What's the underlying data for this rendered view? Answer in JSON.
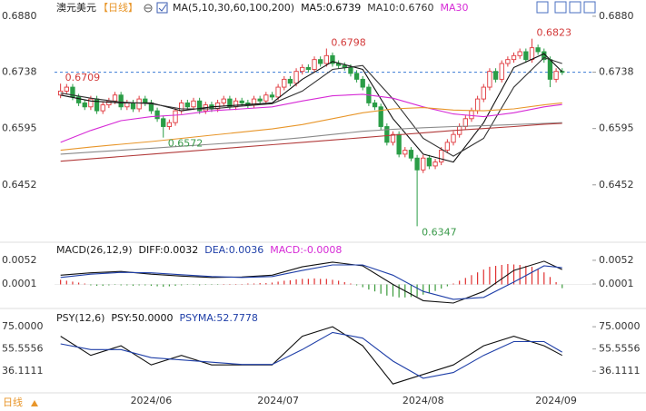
{
  "header": {
    "symbol": "澳元美元",
    "period": "【日线】"
  },
  "footer": {
    "period": "日线"
  },
  "chart_data": [
    {
      "type": "candlestick",
      "title": "MA(5,10,30,60,100,200)",
      "xlim": [
        -1,
        88
      ],
      "xticks": [
        {
          "value": 15,
          "label": "2024/06"
        },
        {
          "value": 36,
          "label": "2024/07"
        },
        {
          "value": 60,
          "label": "2024/08"
        },
        {
          "value": 82,
          "label": "2024/09"
        }
      ],
      "ylim": [
        0.6311,
        0.6912
      ],
      "yticks": [
        {
          "value": 0.688,
          "label": "0.6880"
        },
        0.6738,
        0.6595,
        0.6452
      ],
      "price_line": 0.6738,
      "price_line_color": "#3a7bd5",
      "up_color": "#e0393e",
      "down_color": "#2a9d46",
      "open": [
        0.668,
        0.669,
        0.67,
        0.6675,
        0.666,
        0.665,
        0.667,
        0.664,
        0.6655,
        0.6665,
        0.668,
        0.665,
        0.666,
        0.6645,
        0.667,
        0.666,
        0.664,
        0.662,
        0.66,
        0.661,
        0.664,
        0.666,
        0.665,
        0.6665,
        0.664,
        0.6655,
        0.6645,
        0.666,
        0.667,
        0.665,
        0.6665,
        0.666,
        0.6655,
        0.667,
        0.6665,
        0.668,
        0.6675,
        0.67,
        0.672,
        0.671,
        0.674,
        0.675,
        0.6745,
        0.677,
        0.676,
        0.678,
        0.676,
        0.6755,
        0.675,
        0.6735,
        0.672,
        0.67,
        0.666,
        0.665,
        0.66,
        0.656,
        0.658,
        0.653,
        0.654,
        0.652,
        0.649,
        0.652,
        0.65,
        0.651,
        0.654,
        0.656,
        0.658,
        0.66,
        0.662,
        0.664,
        0.667,
        0.67,
        0.674,
        0.672,
        0.676,
        0.677,
        0.678,
        0.679,
        0.677,
        0.68,
        0.679,
        0.677,
        0.672,
        0.674
      ],
      "high": [
        0.6709,
        0.6708,
        0.6708,
        0.6683,
        0.6668,
        0.6678,
        0.6678,
        0.6663,
        0.6673,
        0.6688,
        0.6688,
        0.6668,
        0.6668,
        0.6678,
        0.6678,
        0.6668,
        0.6648,
        0.6628,
        0.6618,
        0.6648,
        0.6668,
        0.6668,
        0.6673,
        0.6673,
        0.6663,
        0.6663,
        0.6668,
        0.6678,
        0.6678,
        0.6673,
        0.6673,
        0.6668,
        0.6678,
        0.6678,
        0.6688,
        0.6688,
        0.6708,
        0.6728,
        0.6728,
        0.6748,
        0.6758,
        0.6758,
        0.6778,
        0.6778,
        0.6798,
        0.6788,
        0.6768,
        0.6763,
        0.6758,
        0.6743,
        0.6728,
        0.6708,
        0.6668,
        0.6658,
        0.6608,
        0.6588,
        0.6588,
        0.6548,
        0.6548,
        0.6528,
        0.6528,
        0.6528,
        0.6518,
        0.6548,
        0.6568,
        0.6588,
        0.6608,
        0.6628,
        0.6648,
        0.6678,
        0.6708,
        0.6748,
        0.6748,
        0.6768,
        0.6778,
        0.6788,
        0.6798,
        0.6798,
        0.6823,
        0.6808,
        0.6798,
        0.6778,
        0.6748,
        0.6748
      ],
      "low": [
        0.6672,
        0.6682,
        0.6667,
        0.6652,
        0.6642,
        0.6642,
        0.6632,
        0.6632,
        0.6647,
        0.6657,
        0.6642,
        0.6642,
        0.6637,
        0.6637,
        0.6652,
        0.6632,
        0.6612,
        0.6572,
        0.6592,
        0.6602,
        0.6632,
        0.6642,
        0.6642,
        0.6632,
        0.6632,
        0.6637,
        0.6637,
        0.6652,
        0.6642,
        0.6642,
        0.6652,
        0.6647,
        0.6647,
        0.6657,
        0.6657,
        0.6667,
        0.6667,
        0.6692,
        0.6702,
        0.6702,
        0.6732,
        0.6737,
        0.6737,
        0.6752,
        0.6752,
        0.6752,
        0.6747,
        0.6742,
        0.6727,
        0.6712,
        0.6692,
        0.6652,
        0.6642,
        0.6592,
        0.6552,
        0.6552,
        0.6522,
        0.6522,
        0.6512,
        0.6347,
        0.6482,
        0.6492,
        0.6492,
        0.6502,
        0.6532,
        0.6552,
        0.6572,
        0.6592,
        0.6612,
        0.6632,
        0.6662,
        0.6692,
        0.6712,
        0.6712,
        0.6752,
        0.6762,
        0.6772,
        0.6762,
        0.6762,
        0.6782,
        0.6762,
        0.67,
        0.6712,
        0.6731
      ],
      "close": [
        0.669,
        0.67,
        0.6675,
        0.666,
        0.665,
        0.667,
        0.664,
        0.6655,
        0.6665,
        0.668,
        0.665,
        0.666,
        0.6645,
        0.667,
        0.666,
        0.664,
        0.662,
        0.66,
        0.661,
        0.664,
        0.666,
        0.665,
        0.6665,
        0.664,
        0.6655,
        0.6645,
        0.666,
        0.667,
        0.665,
        0.6665,
        0.666,
        0.6655,
        0.667,
        0.6665,
        0.668,
        0.6675,
        0.67,
        0.672,
        0.671,
        0.674,
        0.675,
        0.6745,
        0.677,
        0.676,
        0.678,
        0.676,
        0.6755,
        0.675,
        0.6735,
        0.672,
        0.67,
        0.666,
        0.665,
        0.66,
        0.656,
        0.658,
        0.653,
        0.654,
        0.652,
        0.649,
        0.652,
        0.65,
        0.651,
        0.654,
        0.656,
        0.658,
        0.66,
        0.662,
        0.664,
        0.667,
        0.67,
        0.674,
        0.672,
        0.676,
        0.677,
        0.678,
        0.679,
        0.677,
        0.68,
        0.679,
        0.677,
        0.672,
        0.674,
        0.6739
      ],
      "annotations": [
        {
          "x": 0,
          "value": 0.6709,
          "color": "#d33a3a"
        },
        {
          "x": 44,
          "value": 0.6798,
          "color": "#d33a3a"
        },
        {
          "x": 17,
          "value": 0.6572,
          "color": "#3a9a4a"
        },
        {
          "x": 59,
          "value": 0.6347,
          "color": "#3a9a4a"
        },
        {
          "x": 78,
          "value": 0.6823,
          "color": "#d33a3a"
        }
      ],
      "series": [
        {
          "name": "MA5:0.6739",
          "color": "#111111",
          "x": [
            0,
            5,
            10,
            15,
            20,
            25,
            30,
            35,
            40,
            45,
            50,
            55,
            60,
            65,
            70,
            75,
            80,
            83
          ],
          "values": [
            0.668,
            0.6665,
            0.666,
            0.666,
            0.664,
            0.665,
            0.6655,
            0.666,
            0.672,
            0.6765,
            0.6745,
            0.662,
            0.653,
            0.651,
            0.661,
            0.675,
            0.6785,
            0.6739
          ]
        },
        {
          "name": "MA10:0.6760",
          "color": "#333333",
          "x": [
            0,
            5,
            10,
            15,
            20,
            25,
            30,
            35,
            40,
            45,
            50,
            55,
            60,
            65,
            70,
            75,
            80,
            83
          ],
          "values": [
            0.6685,
            0.6672,
            0.6662,
            0.6658,
            0.6645,
            0.6645,
            0.6652,
            0.6658,
            0.669,
            0.6745,
            0.6755,
            0.667,
            0.657,
            0.6525,
            0.657,
            0.67,
            0.6775,
            0.676
          ]
        },
        {
          "name": "MA30",
          "color": "#d62ad6",
          "x": [
            0,
            5,
            10,
            15,
            20,
            25,
            30,
            35,
            40,
            45,
            50,
            55,
            60,
            65,
            70,
            75,
            80,
            83
          ],
          "values": [
            0.656,
            0.659,
            0.6615,
            0.6625,
            0.663,
            0.664,
            0.6645,
            0.665,
            0.6665,
            0.6678,
            0.6682,
            0.6672,
            0.665,
            0.6632,
            0.6625,
            0.6635,
            0.665,
            0.6656
          ]
        },
        {
          "color": "#e8962a",
          "x": [
            0,
            5,
            10,
            15,
            20,
            25,
            30,
            35,
            40,
            45,
            50,
            55,
            60,
            65,
            70,
            75,
            80,
            83
          ],
          "values": [
            0.654,
            0.6548,
            0.6555,
            0.6562,
            0.657,
            0.6578,
            0.6586,
            0.6594,
            0.6605,
            0.662,
            0.6635,
            0.6645,
            0.6648,
            0.6642,
            0.664,
            0.6645,
            0.6655,
            0.666
          ]
        },
        {
          "color": "#8a8a8a",
          "x": [
            0,
            5,
            10,
            15,
            20,
            25,
            30,
            35,
            40,
            45,
            50,
            55,
            60,
            65,
            70,
            75,
            80,
            83
          ],
          "values": [
            0.653,
            0.6535,
            0.654,
            0.6545,
            0.655,
            0.6555,
            0.656,
            0.6565,
            0.6572,
            0.658,
            0.6588,
            0.6593,
            0.6597,
            0.66,
            0.6602,
            0.6605,
            0.6608,
            0.661
          ]
        },
        {
          "color": "#b23b3b",
          "x": [
            0,
            5,
            10,
            15,
            20,
            25,
            30,
            35,
            40,
            45,
            50,
            55,
            60,
            65,
            70,
            75,
            80,
            83
          ],
          "values": [
            0.6512,
            0.6518,
            0.6524,
            0.653,
            0.6536,
            0.6542,
            0.6548,
            0.6554,
            0.656,
            0.6566,
            0.6572,
            0.6578,
            0.6584,
            0.659,
            0.6595,
            0.66,
            0.6606,
            0.6608
          ]
        }
      ]
    },
    {
      "type": "macd",
      "title": "MACD(26,12,9)",
      "ylim": [
        -0.0042,
        0.0085
      ],
      "yticks": [
        0.0052,
        0.0001
      ],
      "histogram_name": "MACD:-0.0008",
      "histogram_name_color": "#d62ad6",
      "up_color": "#e03030",
      "down_color": "#3a9a3a",
      "values": [
        0.001,
        0.0008,
        0.0006,
        0.0004,
        0.0002,
        -0.0002,
        -0.0003,
        -0.0003,
        -0.0002,
        -0.0001,
        -0.0002,
        -0.0002,
        -0.0003,
        -0.0002,
        -0.0002,
        -0.0003,
        -0.0004,
        -0.0005,
        -0.0004,
        -0.0003,
        -0.0002,
        -0.0001,
        -0.0001,
        -0.0002,
        -0.0001,
        -0.0001,
        -0.0001,
        0.0001,
        0.0001,
        0.0001,
        0.0001,
        0.0002,
        0.0002,
        0.0003,
        0.0003,
        0.0004,
        0.0006,
        0.0008,
        0.0009,
        0.0011,
        0.0012,
        0.0012,
        0.0013,
        0.0012,
        0.0012,
        0.001,
        0.0008,
        0.0005,
        0.0002,
        -0.0002,
        -0.0006,
        -0.0011,
        -0.0015,
        -0.002,
        -0.0024,
        -0.0026,
        -0.0028,
        -0.0028,
        -0.0027,
        -0.0026,
        -0.0022,
        -0.0018,
        -0.0014,
        -0.0009,
        -0.0004,
        0.0002,
        0.0008,
        0.0014,
        0.002,
        0.0026,
        0.0032,
        0.0038,
        0.004,
        0.0042,
        0.0044,
        0.0043,
        0.0042,
        0.004,
        0.0038,
        0.0033,
        0.0026,
        0.0016,
        0.0005,
        -0.0008
      ],
      "series": [
        {
          "name": "DIFF:0.0032",
          "color": "#111111",
          "x": [
            0,
            5,
            10,
            15,
            20,
            25,
            30,
            35,
            40,
            45,
            50,
            55,
            60,
            65,
            70,
            75,
            80,
            83
          ],
          "values": [
            0.002,
            0.0025,
            0.0028,
            0.0022,
            0.0018,
            0.0015,
            0.0016,
            0.002,
            0.0038,
            0.0048,
            0.004,
            0.0,
            -0.0035,
            -0.004,
            -0.0015,
            0.003,
            0.005,
            0.0032
          ]
        },
        {
          "name": "DEA:0.0036",
          "color": "#1f3fa8",
          "x": [
            0,
            5,
            10,
            15,
            20,
            25,
            30,
            35,
            40,
            45,
            50,
            55,
            60,
            65,
            70,
            75,
            80,
            83
          ],
          "values": [
            0.0015,
            0.0022,
            0.0026,
            0.0025,
            0.0021,
            0.0017,
            0.0015,
            0.0017,
            0.003,
            0.0042,
            0.0042,
            0.002,
            -0.0015,
            -0.0032,
            -0.0028,
            0.0005,
            0.004,
            0.0036
          ]
        }
      ]
    },
    {
      "type": "psy",
      "title": "PSY(12,6)",
      "ylim": [
        18,
        87
      ],
      "yticks": [
        {
          "value": 75,
          "label": "75.0000"
        },
        55.5556,
        36.1111
      ],
      "series": [
        {
          "name": "PSY:50.0000",
          "color": "#111111",
          "x": [
            0,
            5,
            10,
            15,
            20,
            25,
            30,
            35,
            40,
            45,
            50,
            55,
            60,
            65,
            70,
            75,
            80,
            83
          ],
          "values": [
            66.6667,
            50,
            58.3333,
            41.6667,
            50,
            41.6667,
            41.6667,
            41.6667,
            66.6667,
            75,
            58.3333,
            25,
            33.3333,
            41.6667,
            58.3333,
            66.6667,
            58.3333,
            50
          ]
        },
        {
          "name": "PSYMA:52.7778",
          "color": "#1f3fa8",
          "x": [
            0,
            5,
            10,
            15,
            20,
            25,
            30,
            35,
            40,
            45,
            50,
            55,
            60,
            65,
            70,
            75,
            80,
            83
          ],
          "values": [
            60,
            55,
            55,
            48,
            46,
            44,
            42,
            42,
            55,
            70,
            65,
            45,
            30,
            35,
            50,
            62,
            62,
            52.7778
          ]
        }
      ]
    }
  ]
}
